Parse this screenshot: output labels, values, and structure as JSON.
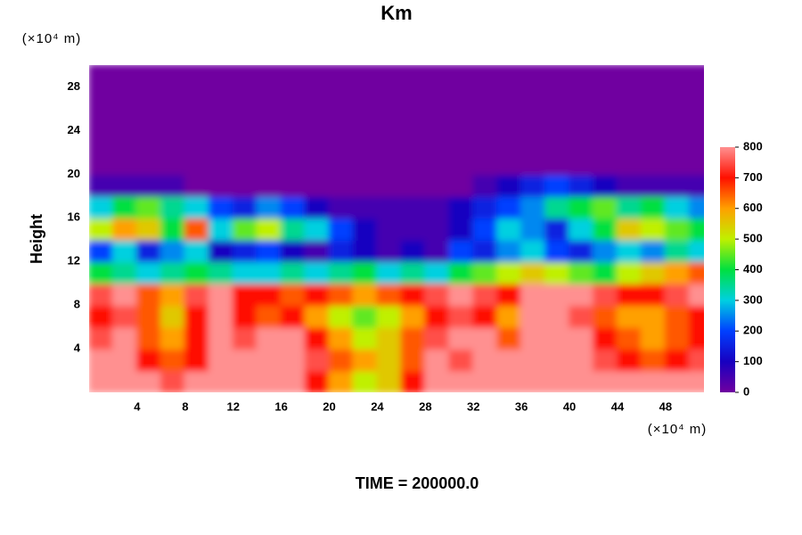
{
  "chart_data": {
    "type": "heatmap",
    "title": "Km",
    "ylabel": "Height",
    "yunit": "(×10⁴ m)",
    "xunit": "(×10⁴ m)",
    "footer": "TIME = 200000.0",
    "xlim": [
      0,
      51.2
    ],
    "ylim": [
      0,
      30
    ],
    "xticks": [
      4,
      8,
      12,
      16,
      20,
      24,
      28,
      32,
      36,
      40,
      44,
      48
    ],
    "yticks": [
      4,
      8,
      12,
      16,
      20,
      24,
      28
    ],
    "x": [
      1,
      3,
      5,
      7,
      9,
      11,
      13,
      15,
      17,
      19,
      21,
      23,
      25,
      27,
      29,
      31,
      33,
      35,
      37,
      39,
      41,
      43,
      45,
      47,
      49,
      51
    ],
    "y": [
      1,
      3,
      5,
      7,
      9,
      11,
      13,
      15,
      17,
      19,
      21,
      23,
      25,
      27,
      29
    ],
    "z": [
      [
        800,
        800,
        800,
        750,
        800,
        800,
        800,
        800,
        800,
        700,
        600,
        500,
        550,
        700,
        800,
        800,
        800,
        800,
        800,
        800,
        800,
        800,
        800,
        800,
        800,
        800
      ],
      [
        800,
        800,
        700,
        650,
        700,
        800,
        800,
        800,
        800,
        750,
        650,
        600,
        550,
        650,
        800,
        750,
        800,
        800,
        800,
        800,
        800,
        750,
        700,
        650,
        700,
        750
      ],
      [
        750,
        800,
        650,
        600,
        700,
        800,
        750,
        800,
        800,
        700,
        600,
        500,
        550,
        650,
        750,
        800,
        800,
        650,
        800,
        800,
        800,
        700,
        650,
        600,
        650,
        700
      ],
      [
        700,
        750,
        650,
        550,
        700,
        800,
        700,
        650,
        700,
        600,
        500,
        450,
        500,
        600,
        700,
        750,
        700,
        600,
        800,
        800,
        750,
        650,
        600,
        600,
        650,
        700
      ],
      [
        750,
        800,
        650,
        600,
        750,
        800,
        700,
        700,
        650,
        700,
        650,
        600,
        650,
        700,
        750,
        800,
        750,
        700,
        800,
        800,
        800,
        750,
        700,
        700,
        750,
        800
      ],
      [
        400,
        350,
        300,
        350,
        400,
        350,
        300,
        300,
        350,
        300,
        350,
        400,
        300,
        350,
        300,
        400,
        450,
        500,
        550,
        500,
        450,
        400,
        500,
        550,
        600,
        650
      ],
      [
        200,
        300,
        150,
        250,
        300,
        100,
        150,
        200,
        100,
        50,
        150,
        100,
        50,
        100,
        50,
        200,
        150,
        250,
        300,
        200,
        150,
        250,
        300,
        250,
        350,
        300
      ],
      [
        500,
        600,
        550,
        400,
        650,
        300,
        450,
        500,
        350,
        300,
        200,
        100,
        50,
        50,
        50,
        100,
        200,
        300,
        250,
        150,
        300,
        400,
        550,
        500,
        450,
        400
      ],
      [
        300,
        400,
        450,
        350,
        300,
        200,
        150,
        250,
        200,
        100,
        50,
        50,
        50,
        50,
        50,
        100,
        150,
        200,
        250,
        350,
        400,
        450,
        350,
        400,
        300,
        250
      ],
      [
        50,
        50,
        50,
        50,
        0,
        0,
        0,
        0,
        0,
        0,
        0,
        0,
        0,
        0,
        0,
        0,
        50,
        100,
        150,
        200,
        150,
        100,
        50,
        50,
        50,
        50
      ],
      [
        0,
        0,
        0,
        0,
        0,
        0,
        0,
        0,
        0,
        0,
        0,
        0,
        0,
        0,
        0,
        0,
        0,
        0,
        0,
        0,
        0,
        0,
        0,
        0,
        0,
        0
      ],
      [
        0,
        0,
        0,
        0,
        0,
        0,
        0,
        0,
        0,
        0,
        0,
        0,
        0,
        0,
        0,
        0,
        0,
        0,
        0,
        0,
        0,
        0,
        0,
        0,
        0,
        0
      ],
      [
        0,
        0,
        0,
        0,
        0,
        0,
        0,
        0,
        0,
        0,
        0,
        0,
        0,
        0,
        0,
        0,
        0,
        0,
        0,
        0,
        0,
        0,
        0,
        0,
        0,
        0
      ],
      [
        0,
        0,
        0,
        0,
        0,
        0,
        0,
        0,
        0,
        0,
        0,
        0,
        0,
        0,
        0,
        0,
        0,
        0,
        0,
        0,
        0,
        0,
        0,
        0,
        0,
        0
      ],
      [
        0,
        0,
        0,
        0,
        0,
        0,
        0,
        0,
        0,
        0,
        0,
        0,
        0,
        0,
        0,
        0,
        0,
        0,
        0,
        0,
        0,
        0,
        0,
        0,
        0,
        0
      ]
    ],
    "zlim": [
      0,
      800
    ],
    "zticks": [
      0,
      100,
      200,
      300,
      400,
      500,
      600,
      700,
      800
    ],
    "colors": [
      "#7000a0",
      "#1800c0",
      "#0040ff",
      "#00d0e0",
      "#00e040",
      "#c0f000",
      "#ffa000",
      "#ff1000",
      "#ff9090"
    ]
  }
}
